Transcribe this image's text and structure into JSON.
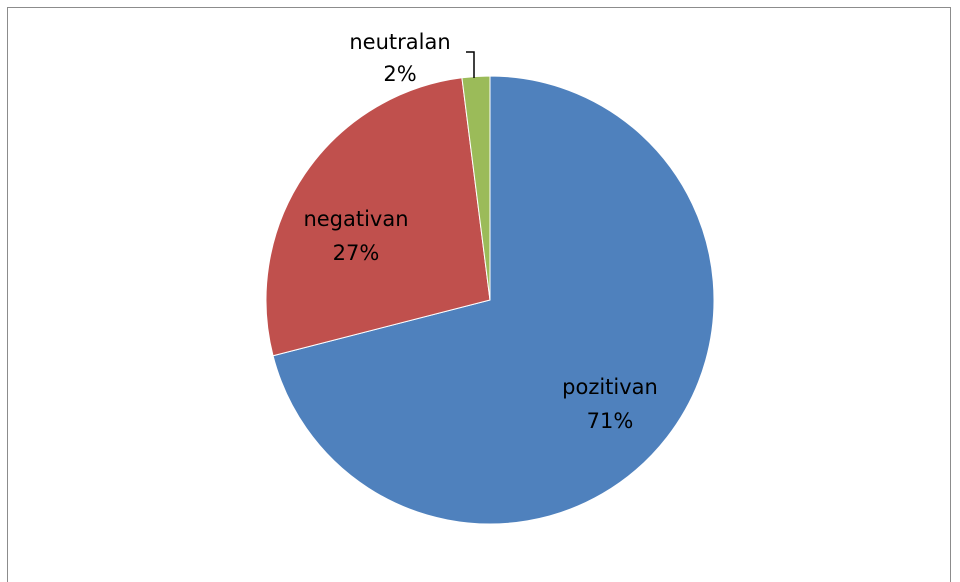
{
  "chart_data": {
    "type": "pie",
    "title": "",
    "slices": [
      {
        "category": "pozitivan",
        "value": 71,
        "value_label": "71%",
        "color": "#4f81bd"
      },
      {
        "category": "negativan",
        "value": 27,
        "value_label": "27%",
        "color": "#c0504d"
      },
      {
        "category": "neutralan",
        "value": 2,
        "value_label": "2%",
        "color": "#9bbb59"
      }
    ],
    "start_angle": "12 o'clock",
    "direction": "clockwise",
    "legend": "none",
    "labels": "category and percentage on each slice"
  }
}
